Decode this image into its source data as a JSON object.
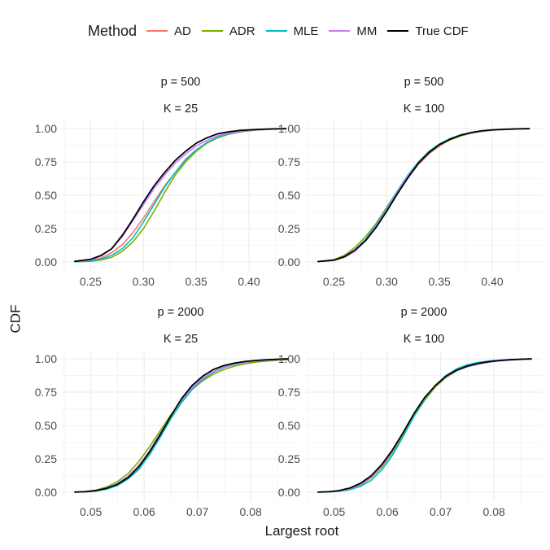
{
  "legend": {
    "title": "Method",
    "items": [
      {
        "label": "AD",
        "color": "#F8766D"
      },
      {
        "label": "ADR",
        "color": "#7CAE00"
      },
      {
        "label": "MLE",
        "color": "#00BFC4"
      },
      {
        "label": "MM",
        "color": "#C77CFF"
      },
      {
        "label": "True CDF",
        "color": "#000000"
      }
    ]
  },
  "axes": {
    "xlabel": "Largest root",
    "ylabel": "CDF"
  },
  "chart_data": [
    {
      "type": "line",
      "strip": [
        "p = 500",
        "K = 25"
      ],
      "xlim": [
        0.235,
        0.437
      ],
      "ylim": [
        0,
        1
      ],
      "xticks": [
        0.25,
        0.3,
        0.35,
        0.4
      ],
      "xtick_labels": [
        "0.25",
        "0.30",
        "0.35",
        "0.40"
      ],
      "yticks": [
        0,
        0.25,
        0.5,
        0.75,
        1
      ],
      "ytick_labels": [
        "0.00",
        "0.25",
        "0.50",
        "0.75",
        "1.00"
      ],
      "grid": true,
      "x": [
        0.235,
        0.25,
        0.26,
        0.27,
        0.28,
        0.29,
        0.3,
        0.31,
        0.32,
        0.33,
        0.34,
        0.35,
        0.36,
        0.37,
        0.38,
        0.39,
        0.4,
        0.41,
        0.42,
        0.435
      ],
      "series": [
        {
          "name": "AD",
          "values": [
            0.003,
            0.01,
            0.03,
            0.07,
            0.13,
            0.22,
            0.33,
            0.45,
            0.57,
            0.67,
            0.76,
            0.83,
            0.89,
            0.93,
            0.955,
            0.972,
            0.983,
            0.99,
            0.994,
            0.997
          ]
        },
        {
          "name": "ADR",
          "values": [
            0.001,
            0.005,
            0.015,
            0.035,
            0.08,
            0.15,
            0.25,
            0.38,
            0.52,
            0.65,
            0.75,
            0.83,
            0.89,
            0.93,
            0.957,
            0.974,
            0.985,
            0.991,
            0.995,
            0.998
          ]
        },
        {
          "name": "MLE",
          "values": [
            0.002,
            0.008,
            0.022,
            0.05,
            0.1,
            0.18,
            0.3,
            0.43,
            0.56,
            0.67,
            0.77,
            0.84,
            0.895,
            0.935,
            0.96,
            0.976,
            0.986,
            0.992,
            0.995,
            0.998
          ]
        },
        {
          "name": "MM",
          "values": [
            0.005,
            0.015,
            0.045,
            0.1,
            0.19,
            0.31,
            0.43,
            0.55,
            0.65,
            0.74,
            0.81,
            0.87,
            0.91,
            0.945,
            0.965,
            0.978,
            0.987,
            0.992,
            0.995,
            0.998
          ]
        },
        {
          "name": "True CDF",
          "values": [
            0.005,
            0.02,
            0.05,
            0.1,
            0.2,
            0.32,
            0.45,
            0.57,
            0.67,
            0.76,
            0.83,
            0.89,
            0.93,
            0.96,
            0.975,
            0.985,
            0.99,
            0.994,
            0.997,
            1.0
          ]
        }
      ]
    },
    {
      "type": "line",
      "strip": [
        "p = 500",
        "K = 100"
      ],
      "xlim": [
        0.235,
        0.437
      ],
      "ylim": [
        0,
        1
      ],
      "xticks": [
        0.25,
        0.3,
        0.35,
        0.4
      ],
      "xtick_labels": [
        "0.25",
        "0.30",
        "0.35",
        "0.40"
      ],
      "yticks": [
        0,
        0.25,
        0.5,
        0.75,
        1
      ],
      "ytick_labels": [
        "0.00",
        "0.25",
        "0.50",
        "0.75",
        "1.00"
      ],
      "grid": true,
      "x": [
        0.235,
        0.25,
        0.26,
        0.27,
        0.28,
        0.29,
        0.3,
        0.31,
        0.32,
        0.33,
        0.34,
        0.35,
        0.36,
        0.37,
        0.38,
        0.39,
        0.4,
        0.41,
        0.42,
        0.435
      ],
      "series": [
        {
          "name": "AD",
          "values": [
            0.003,
            0.015,
            0.04,
            0.09,
            0.17,
            0.27,
            0.39,
            0.51,
            0.63,
            0.73,
            0.81,
            0.87,
            0.915,
            0.945,
            0.965,
            0.978,
            0.987,
            0.992,
            0.995,
            0.998
          ]
        },
        {
          "name": "ADR",
          "values": [
            0.004,
            0.018,
            0.05,
            0.11,
            0.19,
            0.29,
            0.41,
            0.53,
            0.64,
            0.74,
            0.82,
            0.875,
            0.915,
            0.945,
            0.965,
            0.978,
            0.987,
            0.992,
            0.995,
            0.998
          ]
        },
        {
          "name": "MLE",
          "values": [
            0.003,
            0.014,
            0.04,
            0.09,
            0.17,
            0.28,
            0.4,
            0.53,
            0.65,
            0.75,
            0.83,
            0.885,
            0.925,
            0.953,
            0.97,
            0.981,
            0.988,
            0.993,
            0.996,
            0.998
          ]
        },
        {
          "name": "MM",
          "values": [
            0.003,
            0.012,
            0.035,
            0.08,
            0.16,
            0.27,
            0.39,
            0.52,
            0.64,
            0.74,
            0.82,
            0.88,
            0.92,
            0.95,
            0.968,
            0.98,
            0.988,
            0.993,
            0.996,
            0.998
          ]
        },
        {
          "name": "True CDF",
          "values": [
            0.003,
            0.013,
            0.04,
            0.09,
            0.16,
            0.26,
            0.38,
            0.51,
            0.63,
            0.74,
            0.82,
            0.88,
            0.92,
            0.95,
            0.97,
            0.983,
            0.99,
            0.994,
            0.997,
            1.0
          ]
        }
      ]
    },
    {
      "type": "line",
      "strip": [
        "p = 2000",
        "K = 25"
      ],
      "xlim": [
        0.047,
        0.087
      ],
      "ylim": [
        0,
        1
      ],
      "xticks": [
        0.05,
        0.06,
        0.07,
        0.08
      ],
      "xtick_labels": [
        "0.05",
        "0.06",
        "0.07",
        "0.08"
      ],
      "yticks": [
        0,
        0.25,
        0.5,
        0.75,
        1
      ],
      "ytick_labels": [
        "0.00",
        "0.25",
        "0.50",
        "0.75",
        "1.00"
      ],
      "grid": true,
      "x": [
        0.047,
        0.049,
        0.051,
        0.053,
        0.055,
        0.057,
        0.059,
        0.061,
        0.063,
        0.065,
        0.067,
        0.069,
        0.071,
        0.073,
        0.075,
        0.077,
        0.079,
        0.081,
        0.083,
        0.085,
        0.087
      ],
      "series": [
        {
          "name": "AD",
          "values": [
            0.001,
            0.004,
            0.012,
            0.03,
            0.065,
            0.12,
            0.2,
            0.31,
            0.44,
            0.57,
            0.69,
            0.78,
            0.85,
            0.9,
            0.935,
            0.958,
            0.973,
            0.983,
            0.989,
            0.993,
            0.996
          ]
        },
        {
          "name": "ADR",
          "values": [
            0.002,
            0.006,
            0.017,
            0.04,
            0.08,
            0.14,
            0.23,
            0.34,
            0.46,
            0.58,
            0.68,
            0.77,
            0.835,
            0.885,
            0.92,
            0.945,
            0.962,
            0.975,
            0.983,
            0.989,
            0.993
          ]
        },
        {
          "name": "MLE",
          "values": [
            0.001,
            0.003,
            0.009,
            0.023,
            0.05,
            0.1,
            0.17,
            0.28,
            0.41,
            0.55,
            0.67,
            0.77,
            0.845,
            0.9,
            0.935,
            0.958,
            0.974,
            0.984,
            0.99,
            0.994,
            0.997
          ]
        },
        {
          "name": "MM",
          "values": [
            0.001,
            0.004,
            0.012,
            0.03,
            0.065,
            0.12,
            0.2,
            0.31,
            0.44,
            0.57,
            0.69,
            0.785,
            0.855,
            0.905,
            0.94,
            0.962,
            0.976,
            0.985,
            0.991,
            0.995,
            0.998
          ]
        },
        {
          "name": "True CDF",
          "values": [
            0.001,
            0.004,
            0.012,
            0.03,
            0.06,
            0.11,
            0.19,
            0.3,
            0.43,
            0.57,
            0.7,
            0.8,
            0.87,
            0.92,
            0.95,
            0.968,
            0.98,
            0.988,
            0.993,
            0.997,
            1.0
          ]
        }
      ]
    },
    {
      "type": "line",
      "strip": [
        "p = 2000",
        "K = 100"
      ],
      "xlim": [
        0.047,
        0.087
      ],
      "ylim": [
        0,
        1
      ],
      "xticks": [
        0.05,
        0.06,
        0.07,
        0.08
      ],
      "xtick_labels": [
        "0.05",
        "0.06",
        "0.07",
        "0.08"
      ],
      "yticks": [
        0,
        0.25,
        0.5,
        0.75,
        1
      ],
      "ytick_labels": [
        "0.00",
        "0.25",
        "0.50",
        "0.75",
        "1.00"
      ],
      "grid": true,
      "x": [
        0.047,
        0.049,
        0.051,
        0.053,
        0.055,
        0.057,
        0.059,
        0.061,
        0.063,
        0.065,
        0.067,
        0.069,
        0.071,
        0.073,
        0.075,
        0.077,
        0.079,
        0.081,
        0.083,
        0.085,
        0.087
      ],
      "series": [
        {
          "name": "AD",
          "values": [
            0.001,
            0.003,
            0.01,
            0.025,
            0.055,
            0.11,
            0.19,
            0.3,
            0.43,
            0.57,
            0.69,
            0.79,
            0.86,
            0.91,
            0.945,
            0.965,
            0.978,
            0.987,
            0.992,
            0.995,
            0.998
          ]
        },
        {
          "name": "ADR",
          "values": [
            0.001,
            0.003,
            0.01,
            0.025,
            0.055,
            0.11,
            0.19,
            0.3,
            0.43,
            0.57,
            0.69,
            0.79,
            0.86,
            0.91,
            0.945,
            0.965,
            0.978,
            0.987,
            0.992,
            0.995,
            0.998
          ]
        },
        {
          "name": "MLE",
          "values": [
            0.001,
            0.002,
            0.007,
            0.019,
            0.045,
            0.09,
            0.17,
            0.28,
            0.42,
            0.57,
            0.7,
            0.8,
            0.875,
            0.925,
            0.955,
            0.973,
            0.984,
            0.99,
            0.994,
            0.997,
            0.999
          ]
        },
        {
          "name": "MM",
          "values": [
            0.001,
            0.003,
            0.01,
            0.026,
            0.058,
            0.115,
            0.2,
            0.31,
            0.45,
            0.59,
            0.71,
            0.8,
            0.865,
            0.91,
            0.94,
            0.96,
            0.974,
            0.984,
            0.99,
            0.995,
            0.998
          ]
        },
        {
          "name": "True CDF",
          "values": [
            0.001,
            0.004,
            0.013,
            0.032,
            0.068,
            0.125,
            0.21,
            0.32,
            0.45,
            0.59,
            0.71,
            0.8,
            0.87,
            0.915,
            0.945,
            0.965,
            0.978,
            0.987,
            0.993,
            0.997,
            1.0
          ]
        }
      ]
    }
  ]
}
